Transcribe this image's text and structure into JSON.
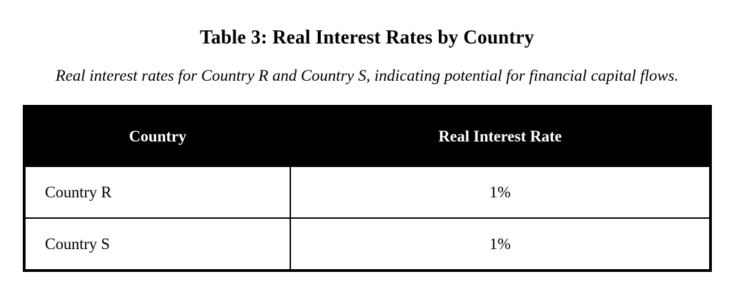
{
  "title": "Table 3: Real Interest Rates by Country",
  "subtitle": "Real interest rates for Country R and Country S, indicating potential for financial capital flows.",
  "table": {
    "columns": [
      "Country",
      "Real Interest Rate"
    ],
    "rows": [
      {
        "country": "Country R",
        "rate": "1%"
      },
      {
        "country": "Country S",
        "rate": "1%"
      }
    ]
  },
  "colors": {
    "header_bg": "#000000",
    "header_text": "#ffffff",
    "border": "#000000",
    "page_bg": "#ffffff",
    "body_text": "#000000"
  }
}
